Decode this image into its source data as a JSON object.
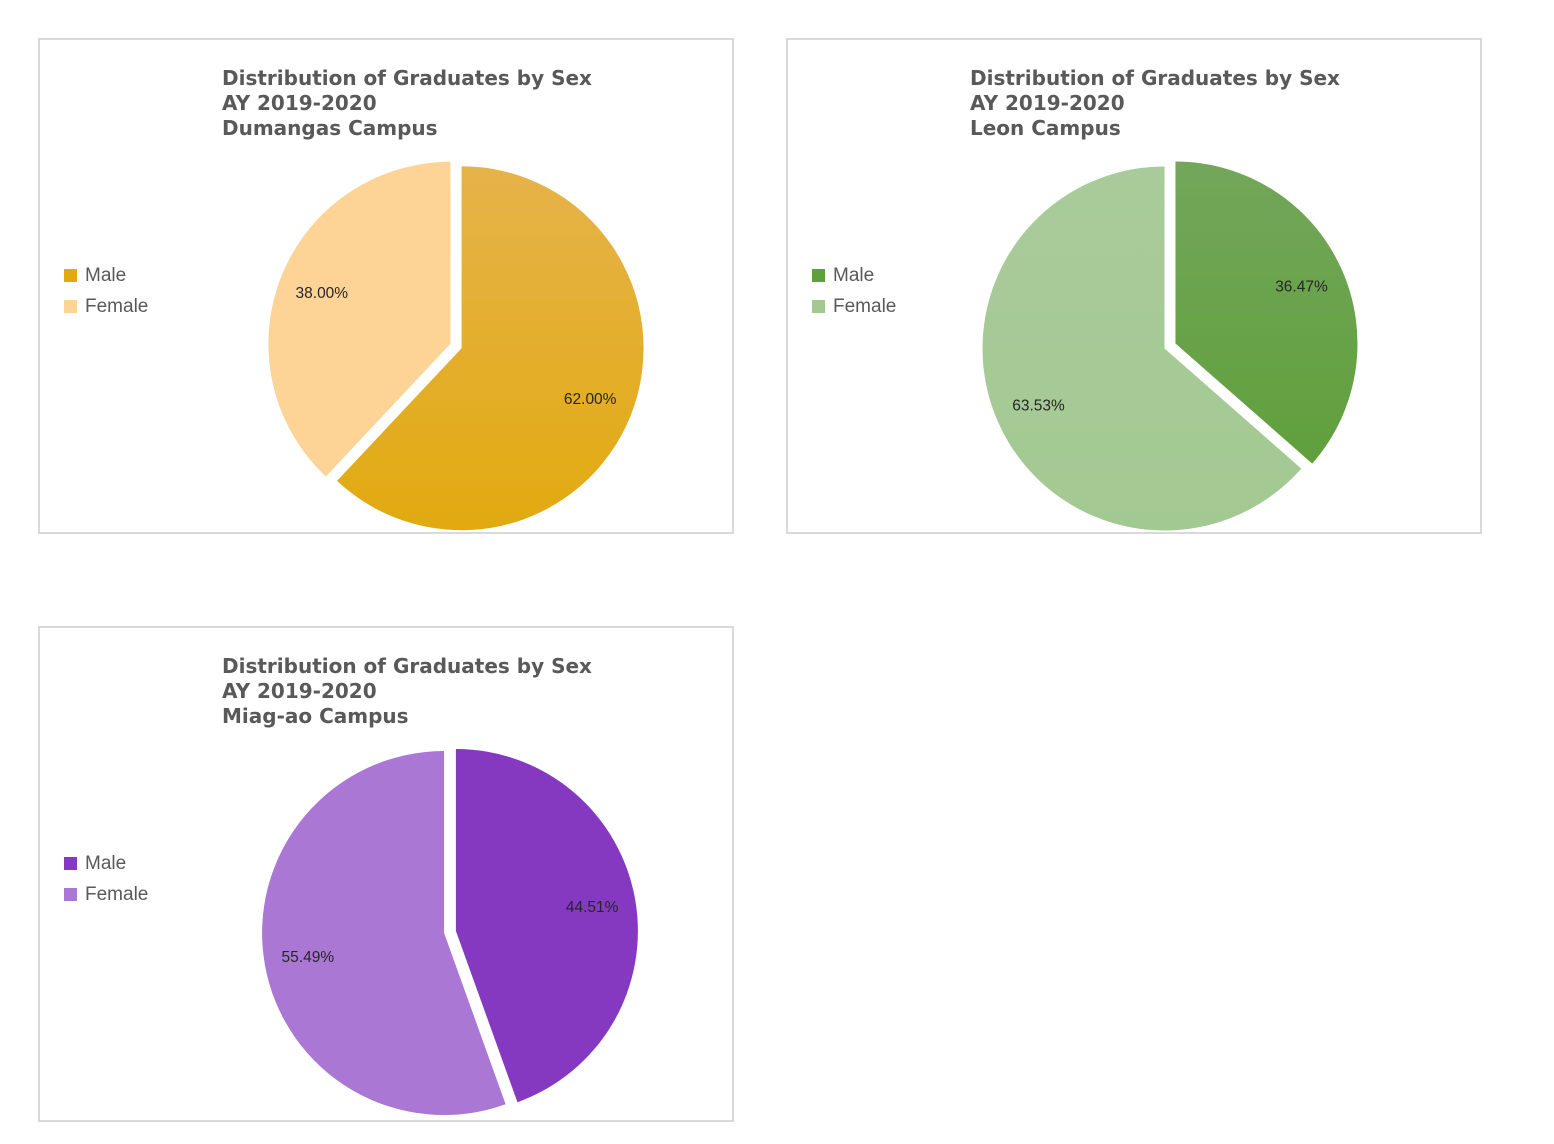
{
  "chart_data": [
    {
      "type": "pie",
      "title_lines": [
        "Distribution of Graduates by Sex",
        "AY 2019-2020",
        "Dumangas Campus"
      ],
      "categories": [
        "Male",
        "Female"
      ],
      "values": [
        62.0,
        38.0
      ],
      "labels": [
        "62.00%",
        "38.00%"
      ],
      "colors": [
        "#e2aa10",
        "#fdd396"
      ],
      "gradient_top": [
        "#e6b34a",
        "#fdd396"
      ],
      "exploded": true,
      "legend_position": "left"
    },
    {
      "type": "pie",
      "title_lines": [
        "Distribution of Graduates by Sex",
        "AY 2019-2020",
        "Leon Campus"
      ],
      "categories": [
        "Male",
        "Female"
      ],
      "values": [
        36.47,
        63.53
      ],
      "labels": [
        "36.47%",
        "63.53%"
      ],
      "colors": [
        "#60a03c",
        "#a3c992"
      ],
      "gradient_top": [
        "#73a65a",
        "#a9cb9b"
      ],
      "exploded": true,
      "legend_position": "left"
    },
    {
      "type": "pie",
      "title_lines": [
        "Distribution of Graduates by Sex",
        "AY 2019-2020",
        "Miag-ao Campus"
      ],
      "categories": [
        "Male",
        "Female"
      ],
      "values": [
        44.51,
        55.49
      ],
      "labels": [
        "44.51%",
        "55.49%"
      ],
      "colors": [
        "#8539c0",
        "#ab77d5"
      ],
      "gradient_top": [
        "#8539c0",
        "#ab77d5"
      ],
      "exploded": true,
      "legend_position": "left"
    }
  ]
}
